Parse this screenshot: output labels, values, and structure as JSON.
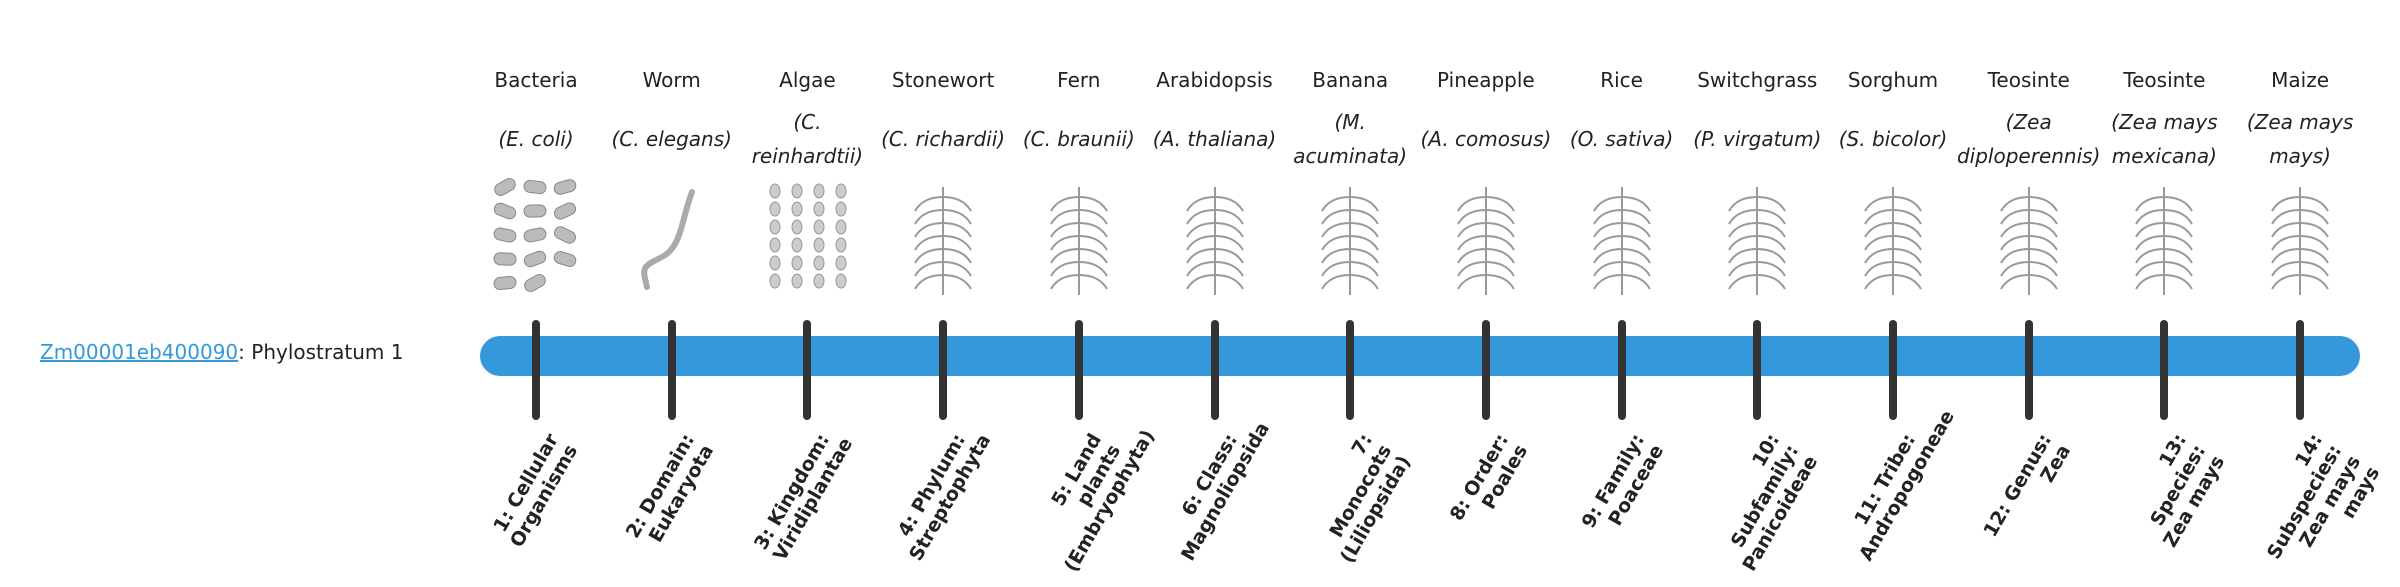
{
  "gene": {
    "id": "Zm00001eb400090",
    "suffix": ": Phylostratum 1"
  },
  "colors": {
    "bar": "#3498db",
    "link": "#3498db",
    "tick": "#333333"
  },
  "columns": [
    {
      "name": "Bacteria",
      "species": "(E. coli)",
      "stratum": "1: Cellular Organisms",
      "icon": "bacteria-icon"
    },
    {
      "name": "Worm",
      "species": "(C. elegans)",
      "stratum": "2: Domain: Eukaryota",
      "icon": "worm-icon"
    },
    {
      "name": "Algae",
      "species": "(C. reinhardtii)",
      "stratum": "3: Kingdom: Viridiplantae",
      "icon": "algae-icon"
    },
    {
      "name": "Stonewort",
      "species": "(C. richardii)",
      "stratum": "4: Phylum: Streptophyta",
      "icon": "stonewort-icon"
    },
    {
      "name": "Fern",
      "species": "(C. braunii)",
      "stratum": "5: Land plants (Embryophyta)",
      "icon": "fern-icon"
    },
    {
      "name": "Arabidopsis",
      "species": "(A. thaliana)",
      "stratum": "6: Class: Magnoliopsida",
      "icon": "arabidopsis-icon"
    },
    {
      "name": "Banana",
      "species": "(M. acuminata)",
      "stratum": "7: Monocots (Liliopsida)",
      "icon": "banana-icon"
    },
    {
      "name": "Pineapple",
      "species": "(A. comosus)",
      "stratum": "8: Order: Poales",
      "icon": "pineapple-icon"
    },
    {
      "name": "Rice",
      "species": "(O. sativa)",
      "stratum": "9: Family: Poaceae",
      "icon": "rice-icon"
    },
    {
      "name": "Switchgrass",
      "species": "(P. virgatum)",
      "stratum": "10: Subfamily: Panicoideae",
      "icon": "switchgrass-icon"
    },
    {
      "name": "Sorghum",
      "species": "(S. bicolor)",
      "stratum": "11: Tribe: Andropogoneae",
      "icon": "sorghum-icon"
    },
    {
      "name": "Teosinte",
      "species": "(Zea diploperennis)",
      "stratum": "12: Genus: Zea",
      "icon": "teosinte-icon"
    },
    {
      "name": "Teosinte",
      "species": "(Zea mays mexicana)",
      "stratum": "13: Species: Zea mays",
      "icon": "teosinte-mexicana-icon"
    },
    {
      "name": "Maize",
      "species": "(Zea mays mays)",
      "stratum": "14: Subspecies: Zea mays mays",
      "icon": "maize-icon"
    }
  ]
}
